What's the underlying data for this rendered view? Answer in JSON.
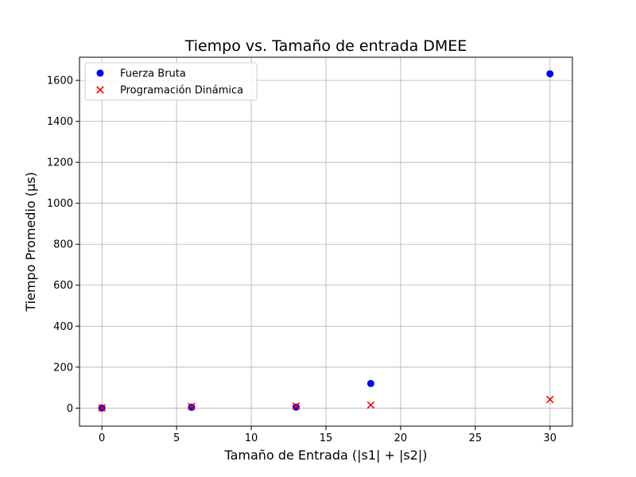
{
  "chart_data": {
    "type": "scatter",
    "title": "Tiempo vs. Tamaño de entrada DMEE",
    "xlabel": "Tamaño de Entrada (|s1| + |s2|)",
    "ylabel": "Tiempo Promedio (µs)",
    "xlim": [
      -1.5,
      31.5
    ],
    "ylim": [
      -88,
      1713
    ],
    "x_ticks": [
      0,
      5,
      10,
      15,
      20,
      25,
      30
    ],
    "y_ticks": [
      0,
      200,
      400,
      600,
      800,
      1000,
      1200,
      1400,
      1600
    ],
    "grid": true,
    "legend_position": "top-left",
    "series": [
      {
        "name": "Fuerza Bruta",
        "marker": "circle",
        "color": "#0000ff",
        "points": [
          {
            "x": 0,
            "y": 0.5
          },
          {
            "x": 6,
            "y": 4
          },
          {
            "x": 13,
            "y": 5
          },
          {
            "x": 18,
            "y": 120
          },
          {
            "x": 30,
            "y": 1632
          }
        ]
      },
      {
        "name": "Programación Dinámica",
        "marker": "x",
        "color": "#ff0000",
        "points": [
          {
            "x": 0,
            "y": 1
          },
          {
            "x": 6,
            "y": 8
          },
          {
            "x": 13,
            "y": 10
          },
          {
            "x": 18,
            "y": 15
          },
          {
            "x": 30,
            "y": 42
          }
        ]
      }
    ]
  }
}
